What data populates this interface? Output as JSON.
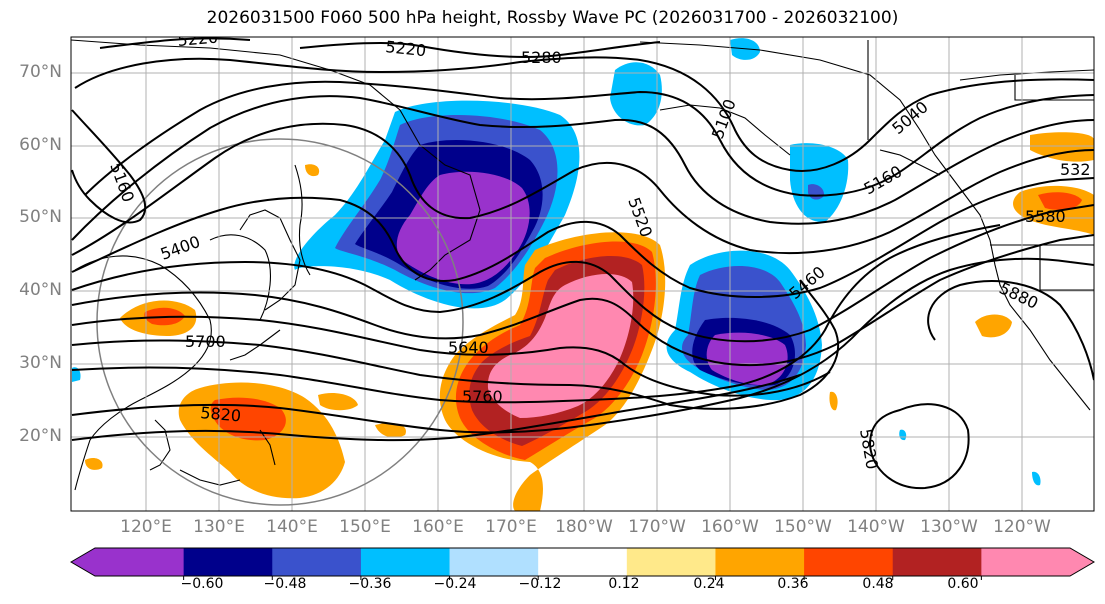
{
  "map": {
    "title": "2026031500 F060 500 hPa height, Rossby Wave PC (2026031700 - 2026032100)",
    "projection": "cylindrical-pacific",
    "lat_labels": [
      "70°N",
      "60°N",
      "50°N",
      "40°N",
      "30°N",
      "20°N"
    ],
    "lon_labels": [
      "120°E",
      "130°E",
      "140°E",
      "150°E",
      "160°E",
      "170°E",
      "180°W",
      "170°W",
      "160°W",
      "150°W",
      "140°W",
      "130°W",
      "120°W"
    ],
    "contour_labels": [
      "5220",
      "5220",
      "5280",
      "5100",
      "5040",
      "5160",
      "5160",
      "532",
      "5580",
      "5520",
      "5400",
      "5460",
      "5880",
      "5700",
      "5640",
      "5760",
      "5820",
      "5820"
    ],
    "colorbar": {
      "tick_labels": [
        "−0.60",
        "−0.48",
        "−0.36",
        "−0.24",
        "−0.12",
        "0.12",
        "0.24",
        "0.36",
        "0.48",
        "0.60"
      ],
      "colors": [
        "#9932cc",
        "#00008b",
        "#3a52cc",
        "#00bfff",
        "#b0e0ff",
        "#ffffff",
        "#ffe98a",
        "#ffa500",
        "#ff4500",
        "#b22222",
        "#ff88b0"
      ]
    },
    "colors": {
      "coast": "#000000",
      "contour": "#000000",
      "grid": "#b0b0b0",
      "circle": "#808080"
    }
  }
}
